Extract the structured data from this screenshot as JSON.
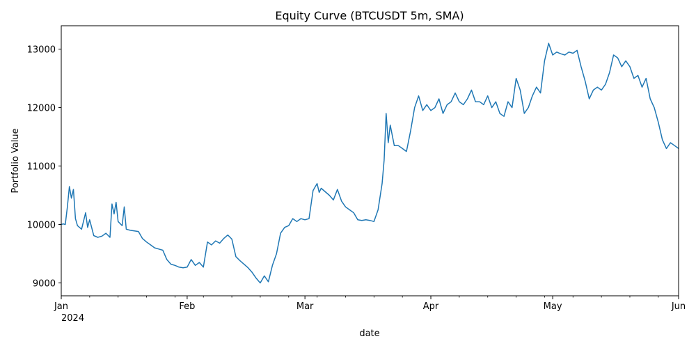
{
  "chart_data": {
    "type": "line",
    "title": "Equity Curve (BTCUSDT 5m, SMA)",
    "xlabel": "date",
    "ylabel": "Portfolio Value",
    "xlim": [
      "2024-01-01",
      "2024-06-01"
    ],
    "ylim": [
      8780,
      13400
    ],
    "grid": false,
    "legend": "none",
    "x_tick_labels": [
      {
        "date": "2024-01-01",
        "label": "Jan",
        "sublabel": "2024"
      },
      {
        "date": "2024-02-01",
        "label": "Feb"
      },
      {
        "date": "2024-03-01",
        "label": "Mar"
      },
      {
        "date": "2024-04-01",
        "label": "Apr"
      },
      {
        "date": "2024-05-01",
        "label": "May"
      },
      {
        "date": "2024-06-01",
        "label": "Jun"
      }
    ],
    "y_ticks": [
      {
        "value": 9000,
        "label": "9000"
      },
      {
        "value": 10000,
        "label": "10000"
      },
      {
        "value": 11000,
        "label": "11000"
      },
      {
        "value": 12000,
        "label": "12000"
      },
      {
        "value": 13000,
        "label": "13000"
      }
    ],
    "series": [
      {
        "color": "#1f77b4",
        "points": [
          [
            "2024-01-01",
            10000
          ],
          [
            "2024-01-01T12:00",
            10010
          ],
          [
            "2024-01-02",
            10000
          ],
          [
            "2024-01-02T12:00",
            10300
          ],
          [
            "2024-01-03",
            10650
          ],
          [
            "2024-01-03T12:00",
            10450
          ],
          [
            "2024-01-04",
            10600
          ],
          [
            "2024-01-04T12:00",
            10100
          ],
          [
            "2024-01-05",
            9980
          ],
          [
            "2024-01-06",
            9920
          ],
          [
            "2024-01-07",
            10200
          ],
          [
            "2024-01-07T12:00",
            9950
          ],
          [
            "2024-01-08",
            10080
          ],
          [
            "2024-01-09",
            9810
          ],
          [
            "2024-01-10",
            9780
          ],
          [
            "2024-01-11",
            9800
          ],
          [
            "2024-01-12",
            9850
          ],
          [
            "2024-01-13",
            9780
          ],
          [
            "2024-01-13T12:00",
            10350
          ],
          [
            "2024-01-14",
            10180
          ],
          [
            "2024-01-14T12:00",
            10380
          ],
          [
            "2024-01-15",
            10050
          ],
          [
            "2024-01-16",
            9980
          ],
          [
            "2024-01-16T12:00",
            10300
          ],
          [
            "2024-01-17",
            9920
          ],
          [
            "2024-01-18",
            9900
          ],
          [
            "2024-01-19",
            9890
          ],
          [
            "2024-01-20",
            9880
          ],
          [
            "2024-01-21",
            9760
          ],
          [
            "2024-01-22",
            9700
          ],
          [
            "2024-01-23",
            9650
          ],
          [
            "2024-01-24",
            9600
          ],
          [
            "2024-01-25",
            9580
          ],
          [
            "2024-01-26",
            9560
          ],
          [
            "2024-01-27",
            9400
          ],
          [
            "2024-01-28",
            9320
          ],
          [
            "2024-01-29",
            9300
          ],
          [
            "2024-01-30",
            9270
          ],
          [
            "2024-01-31",
            9260
          ],
          [
            "2024-02-01",
            9270
          ],
          [
            "2024-02-02",
            9400
          ],
          [
            "2024-02-03",
            9300
          ],
          [
            "2024-02-04",
            9350
          ],
          [
            "2024-02-05",
            9270
          ],
          [
            "2024-02-06",
            9700
          ],
          [
            "2024-02-07",
            9650
          ],
          [
            "2024-02-08",
            9720
          ],
          [
            "2024-02-09",
            9680
          ],
          [
            "2024-02-10",
            9760
          ],
          [
            "2024-02-11",
            9820
          ],
          [
            "2024-02-12",
            9750
          ],
          [
            "2024-02-13",
            9450
          ],
          [
            "2024-02-14",
            9380
          ],
          [
            "2024-02-15",
            9320
          ],
          [
            "2024-02-16",
            9260
          ],
          [
            "2024-02-17",
            9180
          ],
          [
            "2024-02-18",
            9080
          ],
          [
            "2024-02-19",
            9000
          ],
          [
            "2024-02-20",
            9120
          ],
          [
            "2024-02-21",
            9020
          ],
          [
            "2024-02-22",
            9300
          ],
          [
            "2024-02-23",
            9500
          ],
          [
            "2024-02-24",
            9850
          ],
          [
            "2024-02-25",
            9950
          ],
          [
            "2024-02-26",
            9980
          ],
          [
            "2024-02-27",
            10100
          ],
          [
            "2024-02-28",
            10050
          ],
          [
            "2024-02-29",
            10100
          ],
          [
            "2024-03-01",
            10080
          ],
          [
            "2024-03-02",
            10100
          ],
          [
            "2024-03-03",
            10580
          ],
          [
            "2024-03-04",
            10700
          ],
          [
            "2024-03-04T12:00",
            10550
          ],
          [
            "2024-03-05",
            10620
          ],
          [
            "2024-03-06",
            10560
          ],
          [
            "2024-03-07",
            10500
          ],
          [
            "2024-03-08",
            10420
          ],
          [
            "2024-03-09",
            10600
          ],
          [
            "2024-03-10",
            10400
          ],
          [
            "2024-03-11",
            10300
          ],
          [
            "2024-03-12",
            10250
          ],
          [
            "2024-03-13",
            10200
          ],
          [
            "2024-03-14",
            10080
          ],
          [
            "2024-03-15",
            10070
          ],
          [
            "2024-03-16",
            10080
          ],
          [
            "2024-03-17",
            10070
          ],
          [
            "2024-03-18",
            10050
          ],
          [
            "2024-03-19",
            10250
          ],
          [
            "2024-03-20",
            10700
          ],
          [
            "2024-03-20T12:00",
            11100
          ],
          [
            "2024-03-21",
            11900
          ],
          [
            "2024-03-21T12:00",
            11400
          ],
          [
            "2024-03-22",
            11700
          ],
          [
            "2024-03-23",
            11350
          ],
          [
            "2024-03-24",
            11350
          ],
          [
            "2024-03-25",
            11300
          ],
          [
            "2024-03-26",
            11250
          ],
          [
            "2024-03-27",
            11600
          ],
          [
            "2024-03-28",
            12000
          ],
          [
            "2024-03-29",
            12200
          ],
          [
            "2024-03-30",
            11950
          ],
          [
            "2024-03-31",
            12050
          ],
          [
            "2024-04-01",
            11950
          ],
          [
            "2024-04-02",
            12000
          ],
          [
            "2024-04-03",
            12150
          ],
          [
            "2024-04-04",
            11900
          ],
          [
            "2024-04-05",
            12050
          ],
          [
            "2024-04-06",
            12100
          ],
          [
            "2024-04-07",
            12250
          ],
          [
            "2024-04-08",
            12100
          ],
          [
            "2024-04-09",
            12050
          ],
          [
            "2024-04-10",
            12150
          ],
          [
            "2024-04-11",
            12300
          ],
          [
            "2024-04-12",
            12100
          ],
          [
            "2024-04-13",
            12100
          ],
          [
            "2024-04-14",
            12050
          ],
          [
            "2024-04-15",
            12200
          ],
          [
            "2024-04-16",
            12000
          ],
          [
            "2024-04-17",
            12100
          ],
          [
            "2024-04-18",
            11900
          ],
          [
            "2024-04-19",
            11850
          ],
          [
            "2024-04-20",
            12100
          ],
          [
            "2024-04-21",
            12000
          ],
          [
            "2024-04-22",
            12500
          ],
          [
            "2024-04-23",
            12300
          ],
          [
            "2024-04-24",
            11900
          ],
          [
            "2024-04-25",
            12000
          ],
          [
            "2024-04-26",
            12200
          ],
          [
            "2024-04-27",
            12350
          ],
          [
            "2024-04-28",
            12250
          ],
          [
            "2024-04-29",
            12800
          ],
          [
            "2024-04-30",
            13100
          ],
          [
            "2024-05-01",
            12900
          ],
          [
            "2024-05-02",
            12950
          ],
          [
            "2024-05-03",
            12920
          ],
          [
            "2024-05-04",
            12900
          ],
          [
            "2024-05-05",
            12950
          ],
          [
            "2024-05-06",
            12930
          ],
          [
            "2024-05-07",
            12980
          ],
          [
            "2024-05-08",
            12700
          ],
          [
            "2024-05-09",
            12450
          ],
          [
            "2024-05-10",
            12150
          ],
          [
            "2024-05-11",
            12300
          ],
          [
            "2024-05-12",
            12350
          ],
          [
            "2024-05-13",
            12300
          ],
          [
            "2024-05-14",
            12400
          ],
          [
            "2024-05-15",
            12600
          ],
          [
            "2024-05-16",
            12900
          ],
          [
            "2024-05-17",
            12850
          ],
          [
            "2024-05-18",
            12700
          ],
          [
            "2024-05-19",
            12800
          ],
          [
            "2024-05-20",
            12700
          ],
          [
            "2024-05-21",
            12500
          ],
          [
            "2024-05-22",
            12550
          ],
          [
            "2024-05-23",
            12350
          ],
          [
            "2024-05-24",
            12500
          ],
          [
            "2024-05-25",
            12150
          ],
          [
            "2024-05-26",
            12000
          ],
          [
            "2024-05-27",
            11750
          ],
          [
            "2024-05-28",
            11450
          ],
          [
            "2024-05-29",
            11300
          ],
          [
            "2024-05-30",
            11400
          ],
          [
            "2024-05-31",
            11350
          ],
          [
            "2024-06-01",
            11300
          ]
        ]
      }
    ]
  }
}
